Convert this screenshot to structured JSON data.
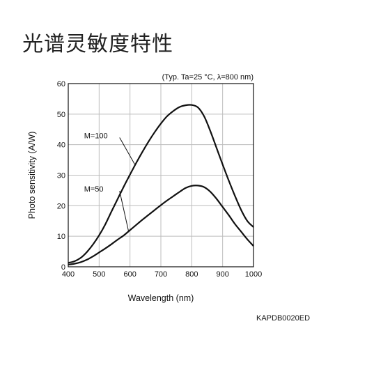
{
  "page": {
    "title": "光谱灵敏度特性",
    "doc_code": "KAPDB0020ED"
  },
  "chart_data": {
    "type": "line",
    "condition": "(Typ. Ta=25 °C, λ=800 nm)",
    "xlabel": "Wavelength (nm)",
    "ylabel": "Photo sensitivity (A/W)",
    "xlim": [
      400,
      1000
    ],
    "ylim": [
      0,
      60
    ],
    "xticks": [
      400,
      500,
      600,
      700,
      800,
      900,
      1000
    ],
    "yticks": [
      0,
      10,
      20,
      30,
      40,
      50,
      60
    ],
    "grid": true,
    "legend": "none",
    "series": [
      {
        "name": "M=100",
        "label_at": [
          440,
          43
        ],
        "x": [
          400,
          420,
          440,
          460,
          480,
          500,
          520,
          540,
          560,
          580,
          600,
          620,
          640,
          660,
          680,
          700,
          720,
          740,
          760,
          780,
          800,
          820,
          840,
          860,
          880,
          900,
          920,
          940,
          960,
          980,
          1000
        ],
        "values": [
          1.3,
          1.8,
          2.9,
          4.8,
          7.3,
          10.3,
          13.9,
          18.1,
          22.2,
          26.3,
          30.2,
          34.0,
          37.6,
          41.0,
          44.1,
          46.9,
          49.3,
          51.0,
          52.3,
          52.9,
          53.0,
          52.2,
          49.3,
          44.5,
          39.0,
          33.5,
          28.2,
          23.2,
          18.6,
          15.0,
          13.0
        ]
      },
      {
        "name": "M=50",
        "label_at": [
          440,
          25.5
        ],
        "x": [
          400,
          420,
          440,
          460,
          480,
          500,
          520,
          540,
          560,
          580,
          600,
          620,
          640,
          660,
          680,
          700,
          720,
          740,
          760,
          780,
          800,
          820,
          840,
          860,
          880,
          900,
          920,
          940,
          960,
          980,
          1000
        ],
        "values": [
          0.7,
          1.0,
          1.5,
          2.3,
          3.4,
          4.7,
          6.0,
          7.4,
          8.9,
          10.3,
          12.0,
          13.7,
          15.4,
          17.0,
          18.6,
          20.2,
          21.7,
          23.1,
          24.5,
          25.8,
          26.5,
          26.6,
          26.1,
          24.6,
          22.3,
          19.6,
          16.9,
          14.0,
          11.5,
          9.0,
          6.8
        ]
      }
    ]
  }
}
